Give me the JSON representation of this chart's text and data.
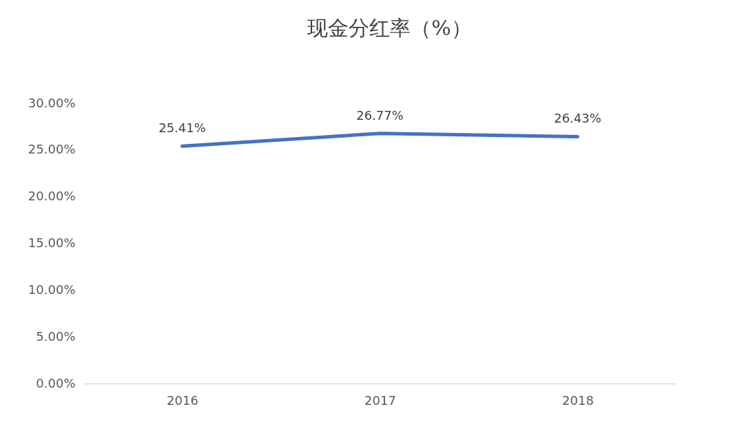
{
  "chart_data": {
    "type": "line",
    "title": "现金分红率（%）",
    "categories": [
      "2016",
      "2017",
      "2018"
    ],
    "values": [
      25.41,
      26.77,
      26.43
    ],
    "value_labels": [
      "25.41%",
      "26.77%",
      "26.43%"
    ],
    "color": "#4472c4",
    "ylim": [
      0,
      30
    ],
    "yticks": [
      {
        "value": 0,
        "label": "0.00%"
      },
      {
        "value": 5,
        "label": "5.00%"
      },
      {
        "value": 10,
        "label": "10.00%"
      },
      {
        "value": 15,
        "label": "15.00%"
      },
      {
        "value": 20,
        "label": "20.00%"
      },
      {
        "value": 25,
        "label": "25.00%"
      },
      {
        "value": 30,
        "label": "30.00%"
      }
    ],
    "grid": false
  }
}
